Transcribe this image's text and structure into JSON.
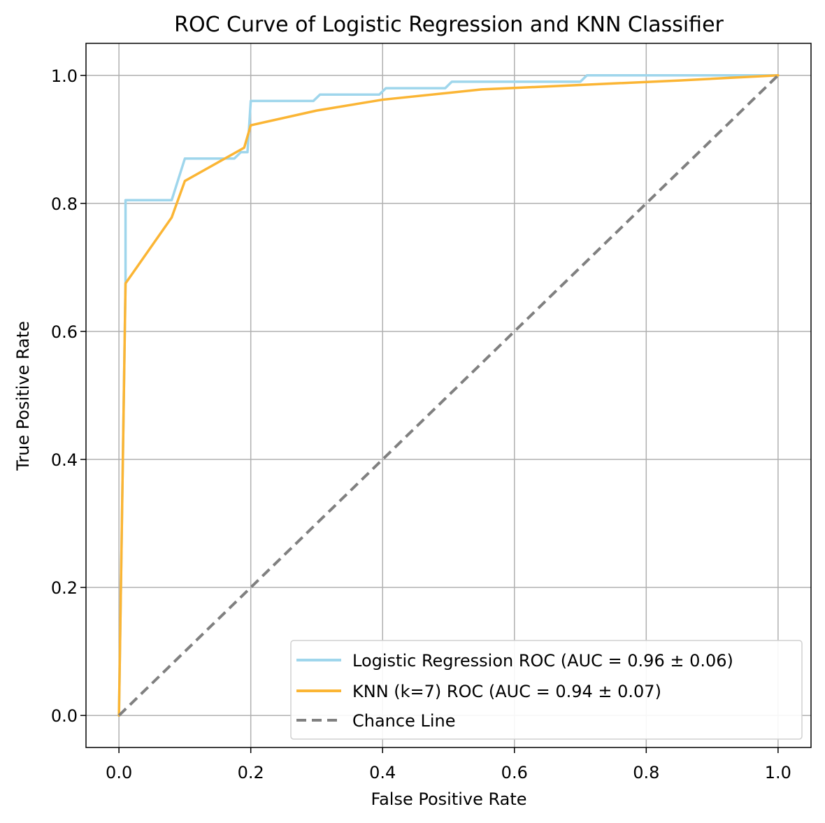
{
  "chart_data": {
    "type": "line",
    "title": "ROC Curve of Logistic Regression and KNN Classifier",
    "xlabel": "False Positive Rate",
    "ylabel": "True Positive Rate",
    "xlim": [
      -0.05,
      1.05
    ],
    "ylim": [
      -0.05,
      1.05
    ],
    "xticks": [
      0.0,
      0.2,
      0.4,
      0.6,
      0.8,
      1.0
    ],
    "yticks": [
      0.0,
      0.2,
      0.4,
      0.6,
      0.8,
      1.0
    ],
    "xtick_labels": [
      "0.0",
      "0.2",
      "0.4",
      "0.6",
      "0.8",
      "1.0"
    ],
    "ytick_labels": [
      "0.0",
      "0.2",
      "0.4",
      "0.6",
      "0.8",
      "1.0"
    ],
    "grid": true,
    "legend_position": "lower-right",
    "series": [
      {
        "name": "Logistic Regression ROC (AUC = 0.96 ± 0.06)",
        "color": "#9fd6ec",
        "style": "solid",
        "points": [
          [
            0.0,
            0.0
          ],
          [
            0.01,
            0.677
          ],
          [
            0.01,
            0.805
          ],
          [
            0.08,
            0.805
          ],
          [
            0.1,
            0.87
          ],
          [
            0.175,
            0.87
          ],
          [
            0.185,
            0.88
          ],
          [
            0.195,
            0.88
          ],
          [
            0.2,
            0.96
          ],
          [
            0.295,
            0.96
          ],
          [
            0.305,
            0.97
          ],
          [
            0.395,
            0.97
          ],
          [
            0.405,
            0.98
          ],
          [
            0.495,
            0.98
          ],
          [
            0.505,
            0.99
          ],
          [
            0.7,
            0.99
          ],
          [
            0.71,
            1.0
          ],
          [
            1.0,
            1.0
          ]
        ]
      },
      {
        "name": "KNN (k=7) ROC (AUC = 0.94 ± 0.07)",
        "color": "#fbb534",
        "style": "solid",
        "points": [
          [
            0.0,
            0.0
          ],
          [
            0.01,
            0.675
          ],
          [
            0.08,
            0.778
          ],
          [
            0.1,
            0.835
          ],
          [
            0.19,
            0.887
          ],
          [
            0.2,
            0.922
          ],
          [
            0.3,
            0.945
          ],
          [
            0.4,
            0.962
          ],
          [
            0.55,
            0.978
          ],
          [
            0.7,
            0.985
          ],
          [
            0.85,
            0.992
          ],
          [
            1.0,
            1.0
          ]
        ]
      },
      {
        "name": "Chance Line",
        "color": "#808080",
        "style": "dashed",
        "points": [
          [
            0.0,
            0.0
          ],
          [
            1.0,
            1.0
          ]
        ]
      }
    ]
  }
}
